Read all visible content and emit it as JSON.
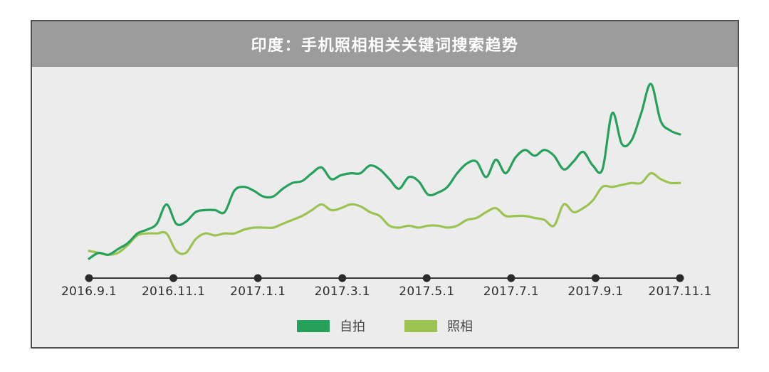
{
  "header": {
    "title": "印度：手机照相相关关键词搜索趋势"
  },
  "colors": {
    "header_bg": "#9c9c9c",
    "plot_bg": "#ececec",
    "card_border": "#4f4f4f",
    "title_text": "#ffffff",
    "tick_text": "#2d2d2d",
    "legend_text": "#4c4c4c"
  },
  "chart_data": {
    "type": "line",
    "title": "印度：手机照相相关关键词搜索趋势",
    "x_labels": [
      "2016.9.1",
      "2016.11.1",
      "2017.1.1",
      "2017.3.1",
      "2017.5.1",
      "2017.7.1",
      "2017.9.1",
      "2017.11.1"
    ],
    "x_unit": "weekly samples from 2016.9.1 to 2017.11.1",
    "xlabel": "",
    "ylabel": "",
    "y_range": [
      0,
      100
    ],
    "grid": false,
    "legend_position": "bottom-center",
    "axis_color": "#3a3a3a",
    "marker_color": "#2b2b2b",
    "series": [
      {
        "name": "自拍",
        "color": "#26a15c",
        "values": [
          10,
          13,
          12,
          15,
          18,
          23,
          25,
          28,
          38,
          28,
          29,
          34,
          35,
          35,
          34,
          45,
          47,
          45,
          42,
          42,
          46,
          49,
          50,
          54,
          57,
          51,
          53,
          54,
          54,
          58,
          56,
          51,
          46,
          52,
          50,
          43,
          44,
          47,
          54,
          59,
          60,
          52,
          61,
          54,
          62,
          66,
          63,
          66,
          63,
          56,
          60,
          65,
          58,
          56,
          85,
          69,
          71,
          85,
          100,
          81,
          76,
          74
        ]
      },
      {
        "name": "照相",
        "color": "#9cc352",
        "values": [
          14,
          13,
          12,
          13,
          17,
          22,
          23,
          23,
          23,
          14,
          13,
          20,
          23,
          22,
          23,
          23,
          25,
          26,
          26,
          26,
          28,
          30,
          32,
          35,
          38,
          35,
          36,
          38,
          37,
          34,
          32,
          27,
          26,
          27,
          26,
          27,
          27,
          26,
          27,
          30,
          31,
          34,
          36,
          32,
          32,
          32,
          31,
          30,
          27,
          38,
          34,
          36,
          40,
          47,
          47,
          48,
          49,
          49,
          54,
          51,
          49,
          49
        ]
      }
    ]
  }
}
